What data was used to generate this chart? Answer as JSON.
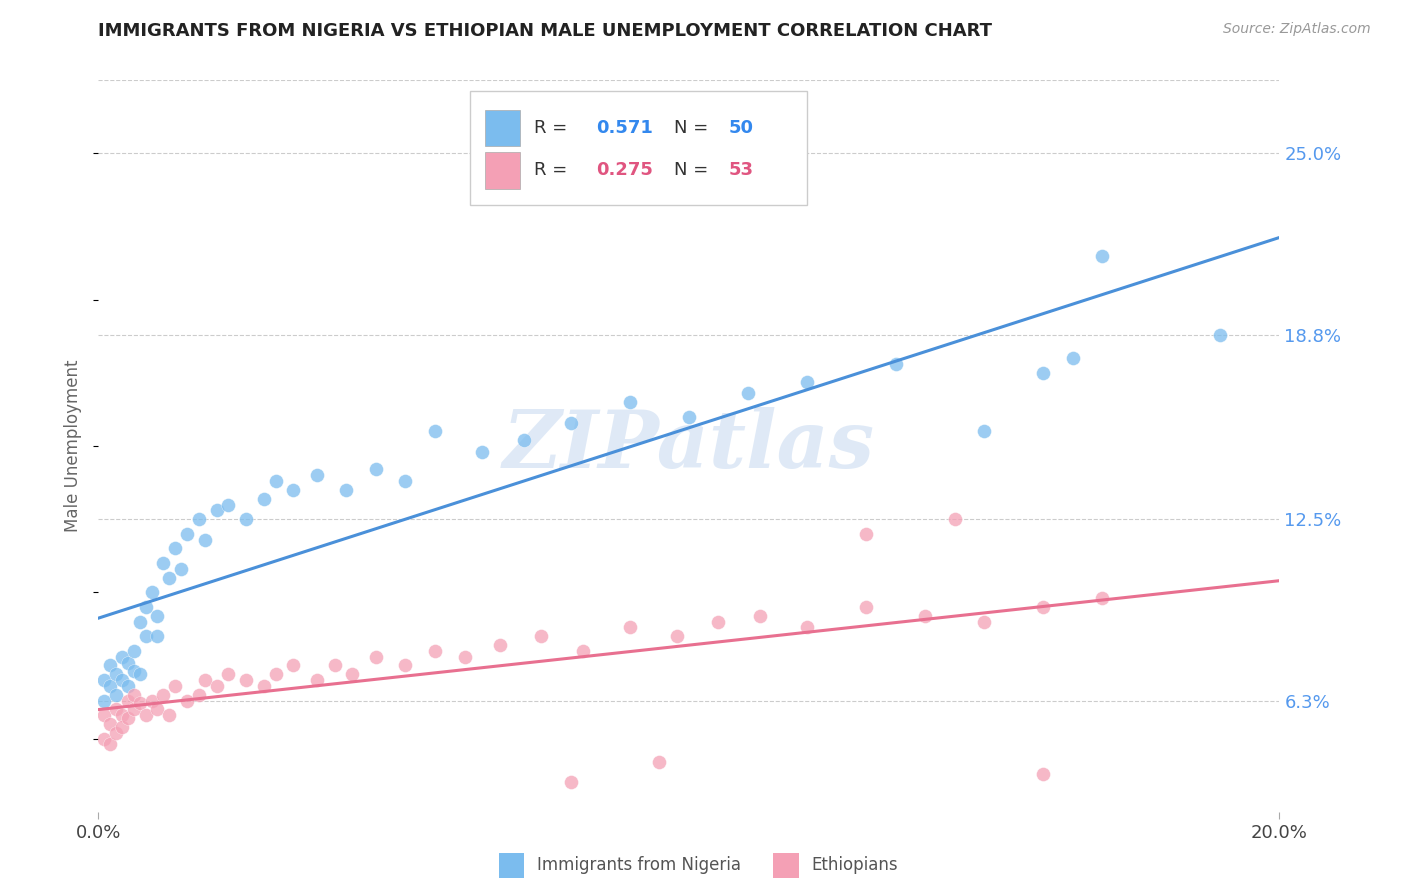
{
  "title": "IMMIGRANTS FROM NIGERIA VS ETHIOPIAN MALE UNEMPLOYMENT CORRELATION CHART",
  "source": "Source: ZipAtlas.com",
  "ylabel": "Male Unemployment",
  "xlabel_ticks": [
    "0.0%",
    "20.0%"
  ],
  "ytick_labels": [
    "25.0%",
    "18.8%",
    "12.5%",
    "6.3%"
  ],
  "ytick_values": [
    0.25,
    0.188,
    0.125,
    0.063
  ],
  "xmin": 0.0,
  "xmax": 0.2,
  "ymin": 0.025,
  "ymax": 0.275,
  "blue_color": "#7bbcee",
  "pink_color": "#f4a0b5",
  "blue_line_color": "#4a90d9",
  "pink_line_color": "#e87090",
  "watermark": "ZIPatlas",
  "nigeria_x": [
    0.001,
    0.001,
    0.002,
    0.002,
    0.003,
    0.003,
    0.004,
    0.004,
    0.005,
    0.005,
    0.006,
    0.006,
    0.007,
    0.007,
    0.008,
    0.008,
    0.009,
    0.01,
    0.01,
    0.011,
    0.012,
    0.013,
    0.014,
    0.015,
    0.017,
    0.018,
    0.02,
    0.022,
    0.025,
    0.028,
    0.03,
    0.033,
    0.037,
    0.042,
    0.047,
    0.052,
    0.057,
    0.065,
    0.072,
    0.08,
    0.09,
    0.1,
    0.11,
    0.12,
    0.135,
    0.15,
    0.16,
    0.165,
    0.17,
    0.19
  ],
  "nigeria_y": [
    0.063,
    0.07,
    0.068,
    0.075,
    0.065,
    0.072,
    0.078,
    0.07,
    0.068,
    0.076,
    0.073,
    0.08,
    0.072,
    0.09,
    0.085,
    0.095,
    0.1,
    0.085,
    0.092,
    0.11,
    0.105,
    0.115,
    0.108,
    0.12,
    0.125,
    0.118,
    0.128,
    0.13,
    0.125,
    0.132,
    0.138,
    0.135,
    0.14,
    0.135,
    0.142,
    0.138,
    0.155,
    0.148,
    0.152,
    0.158,
    0.165,
    0.16,
    0.168,
    0.172,
    0.178,
    0.155,
    0.175,
    0.18,
    0.215,
    0.188
  ],
  "ethiopia_x": [
    0.001,
    0.001,
    0.002,
    0.002,
    0.003,
    0.003,
    0.004,
    0.004,
    0.005,
    0.005,
    0.006,
    0.006,
    0.007,
    0.008,
    0.009,
    0.01,
    0.011,
    0.012,
    0.013,
    0.015,
    0.017,
    0.018,
    0.02,
    0.022,
    0.025,
    0.028,
    0.03,
    0.033,
    0.037,
    0.04,
    0.043,
    0.047,
    0.052,
    0.057,
    0.062,
    0.068,
    0.075,
    0.082,
    0.09,
    0.098,
    0.105,
    0.112,
    0.12,
    0.13,
    0.14,
    0.15,
    0.16,
    0.17,
    0.13,
    0.145,
    0.08,
    0.095,
    0.16
  ],
  "ethiopia_y": [
    0.058,
    0.05,
    0.055,
    0.048,
    0.06,
    0.052,
    0.058,
    0.054,
    0.063,
    0.057,
    0.06,
    0.065,
    0.062,
    0.058,
    0.063,
    0.06,
    0.065,
    0.058,
    0.068,
    0.063,
    0.065,
    0.07,
    0.068,
    0.072,
    0.07,
    0.068,
    0.072,
    0.075,
    0.07,
    0.075,
    0.072,
    0.078,
    0.075,
    0.08,
    0.078,
    0.082,
    0.085,
    0.08,
    0.088,
    0.085,
    0.09,
    0.092,
    0.088,
    0.095,
    0.092,
    0.09,
    0.095,
    0.098,
    0.12,
    0.125,
    0.035,
    0.042,
    0.038
  ]
}
